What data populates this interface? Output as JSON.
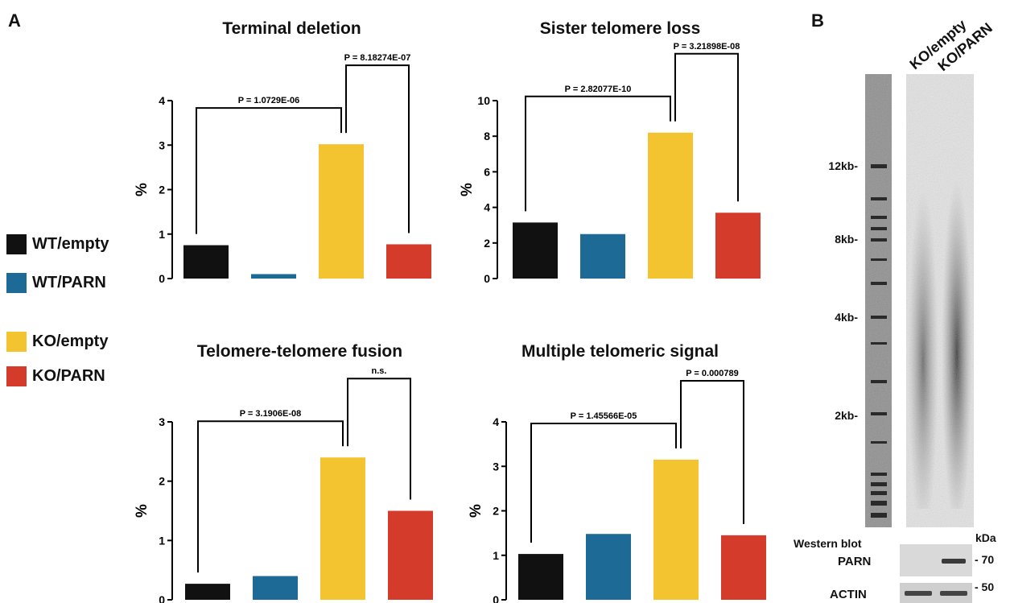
{
  "panel_labels": {
    "a": "A",
    "b": "B"
  },
  "colors": {
    "WT/empty": "#111111",
    "WT/PARN": "#1d6a97",
    "KO/empty": "#f4c430",
    "KO/PARN": "#d43b2a"
  },
  "legend": {
    "items": [
      {
        "label": "WT/empty",
        "color": "#111111"
      },
      {
        "label": "WT/PARN",
        "color": "#1d6a97"
      },
      {
        "label": "KO/empty",
        "color": "#f4c430"
      },
      {
        "label": "KO/PARN",
        "color": "#d43b2a"
      }
    ]
  },
  "chart_data": [
    {
      "type": "bar",
      "title": "Terminal deletion",
      "ylabel": "%",
      "categories": [
        "WT/empty",
        "WT/PARN",
        "KO/empty",
        "KO/PARN"
      ],
      "values": [
        0.75,
        0.1,
        3.02,
        0.77
      ],
      "ylim": [
        0,
        4
      ],
      "yticks": [
        0,
        1,
        2,
        3,
        4
      ],
      "comparisons": [
        {
          "from": 0,
          "to": 2,
          "label": "P = 1.0729E-06"
        },
        {
          "from": 2,
          "to": 3,
          "label": "P = 8.18274E-07"
        }
      ]
    },
    {
      "type": "bar",
      "title": "Sister telomere loss",
      "ylabel": "%",
      "categories": [
        "WT/empty",
        "WT/PARN",
        "KO/empty",
        "KO/PARN"
      ],
      "values": [
        3.15,
        2.5,
        8.2,
        3.7
      ],
      "ylim": [
        0,
        10
      ],
      "yticks": [
        0,
        2,
        4,
        6,
        8,
        10
      ],
      "comparisons": [
        {
          "from": 0,
          "to": 2,
          "label": "P = 2.82077E-10"
        },
        {
          "from": 2,
          "to": 3,
          "label": "P = 3.21898E-08"
        }
      ]
    },
    {
      "type": "bar",
      "title": "Telomere-telomere fusion",
      "ylabel": "%",
      "categories": [
        "WT/empty",
        "WT/PARN",
        "KO/empty",
        "KO/PARN"
      ],
      "values": [
        0.27,
        0.4,
        2.4,
        1.5
      ],
      "ylim": [
        0,
        3
      ],
      "yticks": [
        0,
        1,
        2,
        3
      ],
      "comparisons": [
        {
          "from": 0,
          "to": 2,
          "label": "P = 3.1906E-08"
        },
        {
          "from": 2,
          "to": 3,
          "label": "n.s."
        }
      ]
    },
    {
      "type": "bar",
      "title": "Multiple telomeric signal",
      "ylabel": "%",
      "categories": [
        "WT/empty",
        "WT/PARN",
        "KO/empty",
        "KO/PARN"
      ],
      "values": [
        1.03,
        1.48,
        3.15,
        1.45
      ],
      "ylim": [
        0,
        4
      ],
      "yticks": [
        0,
        1,
        2,
        3,
        4
      ],
      "comparisons": [
        {
          "from": 0,
          "to": 2,
          "label": "P = 1.45566E-05"
        },
        {
          "from": 2,
          "to": 3,
          "label": "P = 0.000789"
        }
      ]
    }
  ],
  "gel": {
    "lanes": [
      "KO/empty",
      "KO/PARN"
    ],
    "size_markers": [
      "12kb-",
      "8kb-",
      "4kb-",
      "2kb-"
    ],
    "western_blot": {
      "title": "Western blot",
      "unit": "kDa",
      "rows": [
        "PARN",
        "ACTIN"
      ],
      "markers": [
        "- 70",
        "- 50"
      ]
    }
  }
}
